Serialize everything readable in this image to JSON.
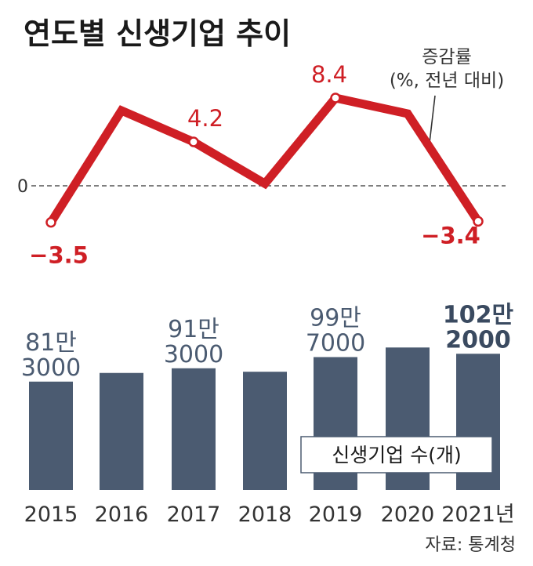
{
  "chart_data": [
    {
      "type": "line",
      "title": "연도별 신생기업 추이",
      "legend": [
        "증감률",
        "(%, 전년 대비)"
      ],
      "zero_label": "0",
      "x": [
        "2015",
        "2016",
        "2017",
        "2018",
        "2019",
        "2020",
        "2021"
      ],
      "values": [
        -3.5,
        7.2,
        4.2,
        0.2,
        8.4,
        6.9,
        -3.4
      ],
      "data_labels": [
        {
          "index": 0,
          "text": "−3.5"
        },
        {
          "index": 2,
          "text": "4.2"
        },
        {
          "index": 4,
          "text": "8.4"
        },
        {
          "index": 6,
          "text": "−3.4"
        }
      ],
      "color": "#cf1f25"
    },
    {
      "type": "bar",
      "legend": "신생기업 수(개)",
      "categories": [
        "2015",
        "2016",
        "2017",
        "2018",
        "2019",
        "2020",
        "2021년"
      ],
      "values": [
        813000,
        878000,
        913000,
        887000,
        997000,
        1069000,
        1022000
      ],
      "data_labels": [
        {
          "index": 0,
          "lines": [
            "81만",
            "3000"
          ]
        },
        {
          "index": 2,
          "lines": [
            "91만",
            "3000"
          ]
        },
        {
          "index": 4,
          "lines": [
            "99만",
            "7000"
          ]
        },
        {
          "index": 6,
          "lines": [
            "102만",
            "2000"
          ]
        }
      ],
      "color": "#4b5b71"
    }
  ],
  "source": "자료: 통계청"
}
